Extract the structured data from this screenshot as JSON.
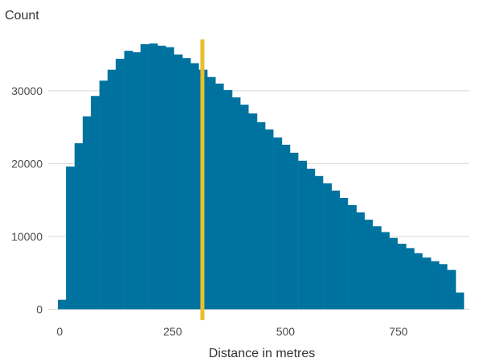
{
  "chart_data": {
    "type": "bar",
    "ylabel": "Count",
    "xlabel": "Distance in metres",
    "bin_width": 18.3,
    "x": [
      -4,
      14,
      33,
      51,
      69,
      88,
      106,
      124,
      143,
      161,
      179,
      198,
      216,
      234,
      253,
      271,
      289,
      308,
      326,
      344,
      363,
      381,
      399,
      418,
      436,
      454,
      473,
      491,
      509,
      528,
      546,
      564,
      583,
      601,
      619,
      638,
      656,
      674,
      693,
      711,
      729,
      748,
      766,
      784,
      803,
      821,
      839,
      858,
      876
    ],
    "values": [
      1300,
      19600,
      22800,
      26500,
      29300,
      31400,
      32900,
      34400,
      35500,
      35300,
      36400,
      36500,
      36200,
      36000,
      35000,
      34500,
      33800,
      32900,
      31900,
      31000,
      30100,
      29100,
      28100,
      26900,
      25700,
      24700,
      23600,
      22600,
      21500,
      20400,
      19300,
      18300,
      17300,
      16300,
      15300,
      14300,
      13300,
      12300,
      11400,
      10600,
      9800,
      9000,
      8400,
      7700,
      7100,
      6600,
      6200,
      5400,
      2300
    ],
    "xlim": [
      -36,
      910
    ],
    "ylim": [
      -1500,
      38500
    ],
    "xticks": [
      0,
      250,
      500,
      750
    ],
    "xtick_labels": [
      "0",
      "250",
      "500",
      "750"
    ],
    "yticks": [
      0,
      10000,
      20000,
      30000
    ],
    "ytick_labels": [
      "0",
      "10000",
      "20000",
      "30000"
    ],
    "grid": "horizontal",
    "reference_line": {
      "x": 316,
      "color": "#e8bf2c"
    },
    "bar_color": "#0072a0"
  }
}
